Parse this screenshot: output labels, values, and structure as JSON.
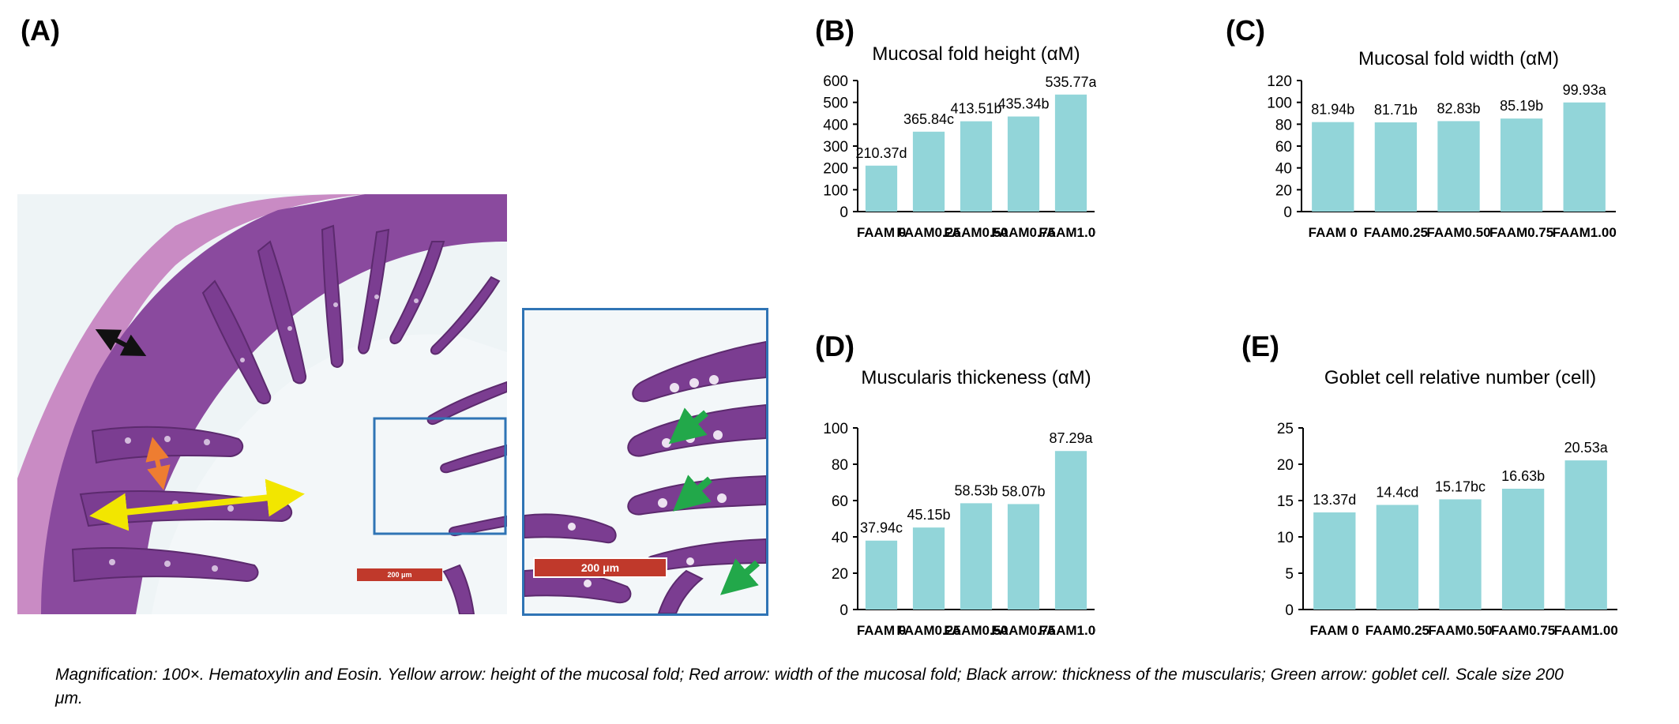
{
  "panel_labels": {
    "a": "(A)",
    "b": "(B)",
    "c": "(C)",
    "d": "(D)",
    "e": "(E)"
  },
  "scale_bar": {
    "main": "200 μm",
    "zoom": "200 μm"
  },
  "caption": "Magnification: 100×. Hematoxylin and Eosin. Yellow arrow: height of the mucosal fold; Red arrow: width of the mucosal fold; Black arrow: thickness of the muscularis; Green arrow: goblet cell. Scale size 200 μm.",
  "colors": {
    "bar": "#92d5d9",
    "tissue": "#8a4a9e",
    "tissue_dark": "#5c2a6e",
    "background_light": "#eef4f6",
    "arrow_yellow": "#f2e600",
    "arrow_orange": "#ee7d31",
    "arrow_black": "#111111",
    "arrow_green": "#22a84a",
    "inset_box": "#2f74b5",
    "scale_bar": "#c0392b"
  },
  "chart_data": [
    {
      "id": "B",
      "type": "bar",
      "title": "Mucosal fold height (αM)",
      "categories": [
        "FAAM 0",
        "FAAM0.25",
        "FAAM0.50",
        "FAAM0.75",
        "FAAM1.00"
      ],
      "values": [
        210.37,
        365.84,
        413.51,
        435.34,
        535.77
      ],
      "data_labels": [
        "210.37d",
        "365.84c",
        "413.51b",
        "435.34b",
        "535.77a"
      ],
      "ylim": [
        0,
        600
      ],
      "yticks": [
        0,
        100,
        200,
        300,
        400,
        500,
        600
      ],
      "grid": false,
      "legend": "none"
    },
    {
      "id": "C",
      "type": "bar",
      "title": "Mucosal fold width (αM)",
      "categories": [
        "FAAM 0",
        "FAAM0.25",
        "FAAM0.50",
        "FAAM0.75",
        "FAAM1.00"
      ],
      "values": [
        81.94,
        81.71,
        82.83,
        85.19,
        99.93
      ],
      "data_labels": [
        "81.94b",
        "81.71b",
        "82.83b",
        "85.19b",
        "99.93a"
      ],
      "ylim": [
        0,
        120
      ],
      "yticks": [
        0,
        20,
        40,
        60,
        80,
        100,
        120
      ],
      "grid": false,
      "legend": "none"
    },
    {
      "id": "D",
      "type": "bar",
      "title": "Muscularis thickeness (αM)",
      "categories": [
        "FAAM 0",
        "FAAM0.25",
        "FAAM0.50",
        "FAAM0.75",
        "FAAM1.00"
      ],
      "values": [
        37.94,
        45.15,
        58.53,
        58.07,
        87.29
      ],
      "data_labels": [
        "37.94c",
        "45.15b",
        "58.53b",
        "58.07b",
        "87.29a"
      ],
      "ylim": [
        0,
        100
      ],
      "yticks": [
        0,
        20,
        40,
        60,
        80,
        100
      ],
      "grid": false,
      "legend": "none"
    },
    {
      "id": "E",
      "type": "bar",
      "title": "Goblet cell relative number (cell)",
      "categories": [
        "FAAM 0",
        "FAAM0.25",
        "FAAM0.50",
        "FAAM0.75",
        "FAAM1.00"
      ],
      "values": [
        13.37,
        14.4,
        15.17,
        16.63,
        20.53
      ],
      "data_labels": [
        "13.37d",
        "14.4cd",
        "15.17bc",
        "16.63b",
        "20.53a"
      ],
      "ylim": [
        0,
        25
      ],
      "yticks": [
        0,
        5,
        10,
        15,
        20,
        25
      ],
      "grid": false,
      "legend": "none"
    }
  ]
}
